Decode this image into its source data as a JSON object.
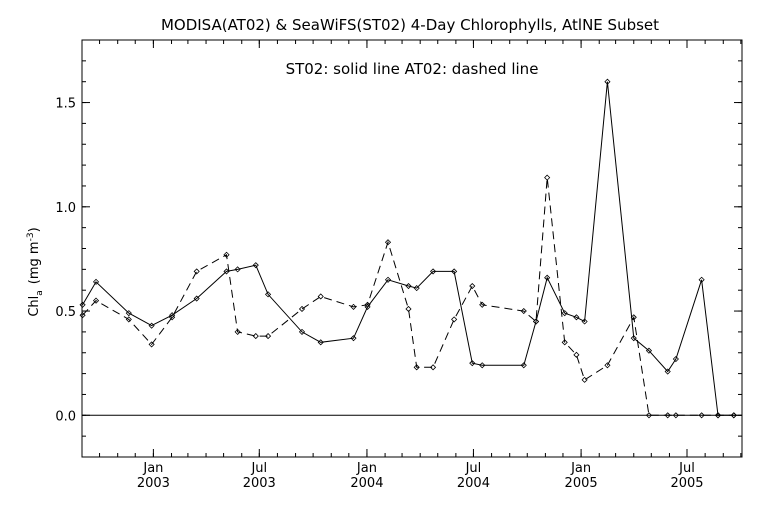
{
  "chart_data": {
    "type": "line",
    "title": "MODISA(AT02) & SeaWiFS(ST02) 4-Day Chlorophylls, AtlNE Subset",
    "annotation": "ST02: solid line   AT02: dashed line",
    "ylabel_main": "Chl",
    "ylabel_sub": "a",
    "ylabel_unit_open": "(mg m",
    "ylabel_unit_exp": "-3",
    "ylabel_unit_close": ")",
    "xlim": [
      "2002-09-01",
      "2005-10-03"
    ],
    "ylim": [
      -0.2,
      1.8
    ],
    "y_ticks": [
      {
        "value": 0.0,
        "label": "0.0"
      },
      {
        "value": 0.5,
        "label": "0.5"
      },
      {
        "value": 1.0,
        "label": "1.0"
      },
      {
        "value": 1.5,
        "label": "1.5"
      }
    ],
    "x_ticks": [
      {
        "date": "2003-01-01",
        "month": "Jan",
        "year": "2003"
      },
      {
        "date": "2003-07-01",
        "month": "Jul",
        "year": "2003"
      },
      {
        "date": "2004-01-01",
        "month": "Jan",
        "year": "2004"
      },
      {
        "date": "2004-07-01",
        "month": "Jul",
        "year": "2004"
      },
      {
        "date": "2005-01-01",
        "month": "Jan",
        "year": "2005"
      },
      {
        "date": "2005-07-01",
        "month": "Jul",
        "year": "2005"
      }
    ],
    "reference_line": 0.0,
    "series": [
      {
        "style": "solid",
        "x": [
          "2002-09-02",
          "2002-09-25",
          "2002-11-20",
          "2002-12-29",
          "2003-02-02",
          "2003-03-16",
          "2003-05-06",
          "2003-05-25",
          "2003-06-25",
          "2003-07-16",
          "2003-09-12",
          "2003-10-14",
          "2003-12-09",
          "2004-01-02",
          "2004-02-06",
          "2004-03-12",
          "2004-03-26",
          "2004-04-23",
          "2004-05-29",
          "2004-06-29",
          "2004-07-16",
          "2004-09-25",
          "2004-10-16",
          "2004-11-04",
          "2004-12-04",
          "2004-12-24",
          "2005-01-07",
          "2005-02-15",
          "2005-04-01",
          "2005-04-27",
          "2005-05-29",
          "2005-06-12",
          "2005-07-26",
          "2005-08-23",
          "2005-09-19"
        ],
        "y": [
          0.53,
          0.64,
          0.49,
          0.43,
          0.48,
          0.56,
          0.69,
          0.7,
          0.72,
          0.58,
          0.4,
          0.35,
          0.37,
          0.52,
          0.65,
          0.62,
          0.61,
          0.69,
          0.69,
          0.25,
          0.24,
          0.24,
          0.45,
          0.66,
          0.49,
          0.47,
          0.45,
          1.6,
          0.37,
          0.31,
          0.21,
          0.27,
          0.65,
          0.0,
          0.0
        ]
      },
      {
        "style": "dashed",
        "x": [
          "2002-09-02",
          "2002-09-25",
          "2002-11-20",
          "2002-12-29",
          "2003-02-02",
          "2003-03-16",
          "2003-05-06",
          "2003-05-25",
          "2003-06-25",
          "2003-07-16",
          "2003-09-12",
          "2003-10-14",
          "2003-12-09",
          "2004-01-02",
          "2004-02-06",
          "2004-03-12",
          "2004-03-26",
          "2004-04-23",
          "2004-05-29",
          "2004-06-29",
          "2004-07-16",
          "2004-09-25",
          "2004-10-16",
          "2004-11-04",
          "2004-12-04",
          "2004-12-24",
          "2005-01-07",
          "2005-02-15",
          "2005-04-01",
          "2005-04-27",
          "2005-05-29",
          "2005-06-12",
          "2005-07-26",
          "2005-08-23",
          "2005-09-19"
        ],
        "y": [
          0.48,
          0.55,
          0.46,
          0.34,
          0.47,
          0.69,
          0.77,
          0.4,
          0.38,
          0.38,
          0.51,
          0.57,
          0.52,
          0.53,
          0.83,
          0.51,
          0.23,
          0.23,
          0.46,
          0.62,
          0.53,
          0.5,
          0.45,
          1.14,
          0.35,
          0.29,
          0.17,
          0.24,
          0.47,
          0.0,
          0.0,
          0.0,
          0.0,
          0.0,
          0.0
        ]
      }
    ]
  }
}
